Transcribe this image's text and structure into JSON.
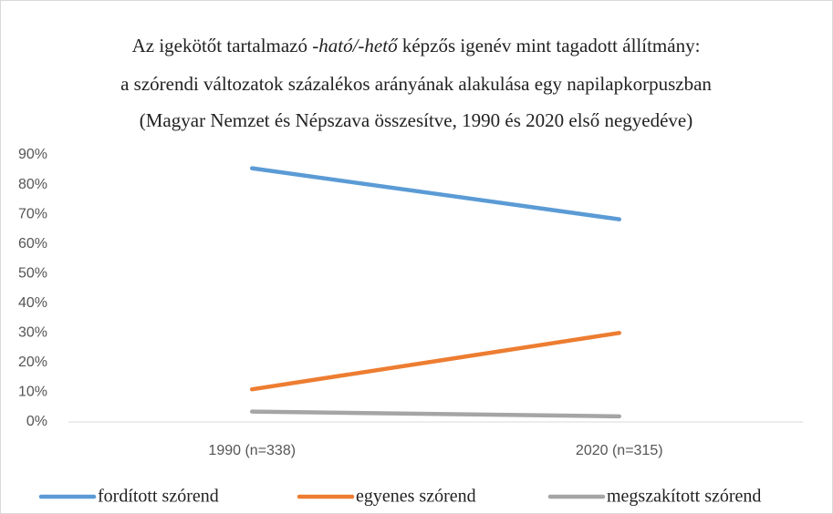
{
  "chart_data": {
    "type": "line",
    "title": [
      [
        "Az igekötőt tartalmazó ",
        "-ható/-hető",
        " képzős igenév mint tagadott állítmány:"
      ],
      "a szórendi változatok százalékos arányának alakulása egy napilapkorpuszban",
      "(Magyar Nemzet és Népszava összesítve, 1990 és 2020 első negyedéve)"
    ],
    "categories": [
      "1990 (n=338)",
      "2020 (n=315)"
    ],
    "series": [
      {
        "name": "fordított szórend",
        "color": "#5b9bd5",
        "values": [
          85.5,
          68.3
        ]
      },
      {
        "name": "egyenes szórend",
        "color": "#ed7d31",
        "values": [
          11,
          30
        ]
      },
      {
        "name": "megszakított szórend",
        "color": "#a5a5a5",
        "values": [
          3.5,
          1.9
        ]
      }
    ],
    "ylim": [
      0,
      90
    ],
    "yticks": [
      {
        "value": 0,
        "label": "0%"
      },
      {
        "value": 10,
        "label": "10%"
      },
      {
        "value": 20,
        "label": "20%"
      },
      {
        "value": 30,
        "label": "30%"
      },
      {
        "value": 40,
        "label": "40%"
      },
      {
        "value": 50,
        "label": "50%"
      },
      {
        "value": 60,
        "label": "60%"
      },
      {
        "value": 70,
        "label": "70%"
      },
      {
        "value": 80,
        "label": "80%"
      },
      {
        "value": 90,
        "label": "90%"
      }
    ],
    "grid": false,
    "legend": "bottom"
  }
}
